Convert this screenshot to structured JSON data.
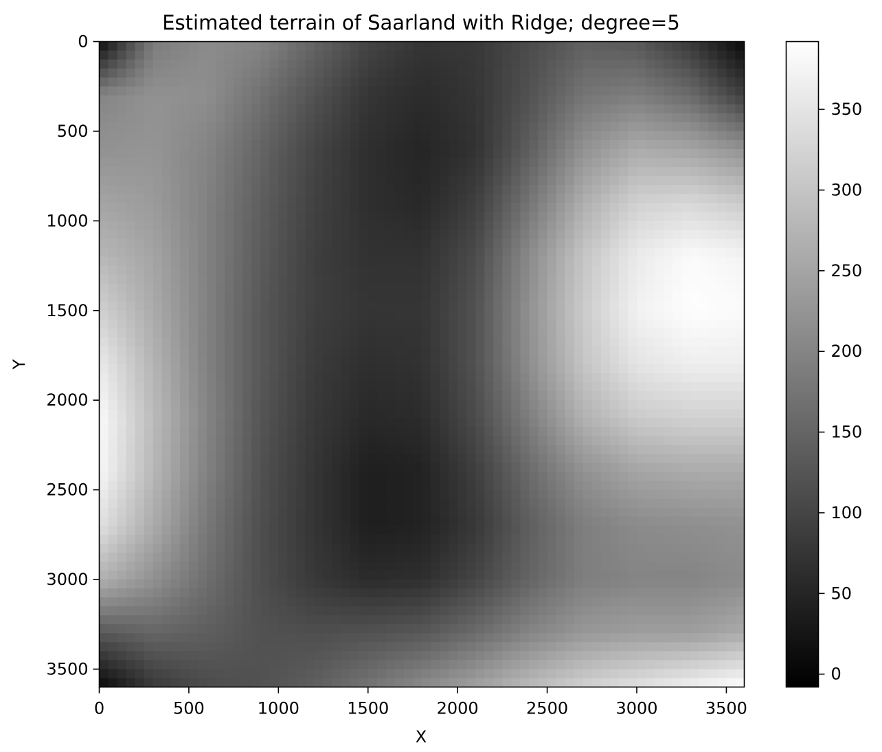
{
  "chart_data": {
    "type": "heatmap",
    "title": "Estimated terrain of Saarland with Ridge; degree=5",
    "xlabel": "X",
    "ylabel": "Y",
    "xlim": [
      0,
      3600
    ],
    "ylim": [
      3600,
      0
    ],
    "x_ticks": [
      0,
      500,
      1000,
      1500,
      2000,
      2500,
      3000,
      3500
    ],
    "y_ticks": [
      0,
      500,
      1000,
      1500,
      2000,
      2500,
      3000,
      3500
    ],
    "colormap": "gray",
    "color_range": [
      -8,
      392
    ],
    "colorbar_ticks": [
      0,
      50,
      100,
      150,
      200,
      250,
      300,
      350
    ],
    "grid": false,
    "grid_x": [
      0,
      300,
      600,
      900,
      1200,
      1500,
      1800,
      2100,
      2400,
      2700,
      3000,
      3300,
      3600
    ],
    "grid_y": [
      0,
      300,
      600,
      900,
      1200,
      1500,
      1800,
      2100,
      2400,
      2700,
      3000,
      3300,
      3600
    ],
    "values": [
      [
        10,
        185,
        210,
        200,
        150,
        100,
        75,
        80,
        110,
        140,
        130,
        80,
        5
      ],
      [
        200,
        220,
        215,
        170,
        120,
        75,
        60,
        75,
        120,
        175,
        190,
        160,
        90
      ],
      [
        220,
        225,
        200,
        150,
        100,
        65,
        50,
        70,
        140,
        220,
        260,
        250,
        220
      ],
      [
        250,
        235,
        195,
        140,
        95,
        65,
        55,
        90,
        175,
        265,
        320,
        330,
        310
      ],
      [
        280,
        250,
        195,
        135,
        90,
        70,
        70,
        110,
        210,
        300,
        360,
        385,
        375
      ],
      [
        320,
        260,
        195,
        130,
        90,
        75,
        75,
        120,
        220,
        310,
        370,
        390,
        385
      ],
      [
        360,
        275,
        195,
        130,
        85,
        65,
        70,
        120,
        215,
        300,
        350,
        365,
        365
      ],
      [
        385,
        285,
        200,
        125,
        80,
        55,
        60,
        110,
        190,
        270,
        310,
        320,
        320
      ],
      [
        380,
        280,
        195,
        120,
        75,
        40,
        45,
        90,
        160,
        220,
        250,
        260,
        260
      ],
      [
        345,
        260,
        180,
        115,
        75,
        40,
        45,
        80,
        140,
        190,
        210,
        215,
        220
      ],
      [
        270,
        220,
        165,
        115,
        80,
        60,
        65,
        100,
        150,
        190,
        200,
        200,
        210
      ],
      [
        130,
        150,
        140,
        120,
        115,
        120,
        130,
        160,
        200,
        230,
        240,
        240,
        260
      ],
      [
        5,
        80,
        110,
        120,
        140,
        175,
        210,
        245,
        285,
        320,
        345,
        370,
        392
      ]
    ]
  }
}
